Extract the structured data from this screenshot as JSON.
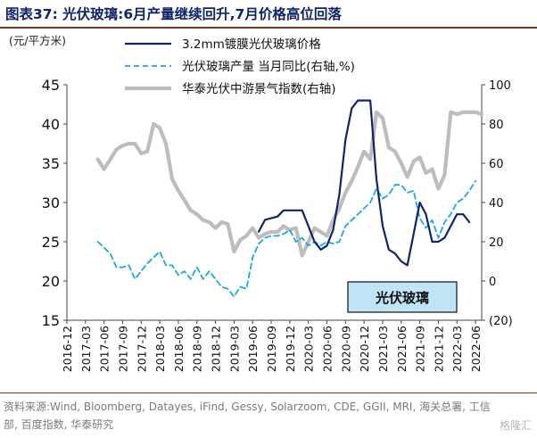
{
  "header": {
    "title": "图表37:  光伏玻璃:6月产量继续回升,7月价格高位回落"
  },
  "footer": {
    "source": "资料来源:Wind, Bloomberg, Datayes, iFind, Gessy, Solarzoom, CDE, GGII, MRI, 海关总署, 工信部, 百度指数, 华泰研究",
    "watermark": "格隆汇"
  },
  "chart_data": {
    "type": "line",
    "unit_label": "(元/平方米)",
    "annotation": "光伏玻璃",
    "colors": {
      "price": "#10246b",
      "production": "#19a9e1",
      "index": "#bdbdbd",
      "annotation_fill": "#bfe4f6"
    },
    "left_axis": {
      "min": 15,
      "max": 45,
      "ticks": [
        15,
        20,
        25,
        30,
        35,
        40,
        45
      ]
    },
    "right_axis": {
      "min": -20,
      "max": 100,
      "ticks": [
        100,
        80,
        60,
        40,
        20,
        0,
        -20
      ],
      "tick_labels": [
        "100",
        "80",
        "60",
        "40",
        "20",
        "0",
        "(20)"
      ]
    },
    "x_labels": [
      "2016-12",
      "2017-03",
      "2017-06",
      "2017-09",
      "2017-12",
      "2018-03",
      "2018-06",
      "2018-09",
      "2018-12",
      "2019-03",
      "2019-06",
      "2019-09",
      "2019-12",
      "2020-03",
      "2020-06",
      "2020-09",
      "2020-12",
      "2021-03",
      "2021-06",
      "2021-09",
      "2021-12",
      "2022-03",
      "2022-06"
    ],
    "x_start": "2016-12",
    "x_end": "2022-07",
    "series": [
      {
        "name": "3.2mm镀膜光伏玻璃价格",
        "axis": "left",
        "style": "solid",
        "points": [
          [
            "2019-07",
            26.3
          ],
          [
            "2019-08",
            27.8
          ],
          [
            "2019-09",
            28.0
          ],
          [
            "2019-10",
            28.2
          ],
          [
            "2019-11",
            29.0
          ],
          [
            "2019-12",
            29.0
          ],
          [
            "2020-01",
            29.0
          ],
          [
            "2020-02",
            29.0
          ],
          [
            "2020-03",
            27.0
          ],
          [
            "2020-04",
            25.0
          ],
          [
            "2020-05",
            24.0
          ],
          [
            "2020-06",
            24.5
          ],
          [
            "2020-07",
            26.5
          ],
          [
            "2020-08",
            31.0
          ],
          [
            "2020-09",
            38.0
          ],
          [
            "2020-10",
            42.0
          ],
          [
            "2020-11",
            43.0
          ],
          [
            "2020-12",
            43.0
          ],
          [
            "2021-01",
            43.0
          ],
          [
            "2021-02",
            33.0
          ],
          [
            "2021-03",
            27.0
          ],
          [
            "2021-04",
            24.0
          ],
          [
            "2021-05",
            23.5
          ],
          [
            "2021-06",
            22.5
          ],
          [
            "2021-07",
            22.0
          ],
          [
            "2021-08",
            26.0
          ],
          [
            "2021-09",
            30.0
          ],
          [
            "2021-10",
            28.5
          ],
          [
            "2021-11",
            25.0
          ],
          [
            "2021-12",
            25.0
          ],
          [
            "2022-01",
            25.5
          ],
          [
            "2022-02",
            27.0
          ],
          [
            "2022-03",
            28.5
          ],
          [
            "2022-04",
            28.5
          ],
          [
            "2022-05",
            27.5
          ]
        ]
      },
      {
        "name": "光伏玻璃产量 当月同比(右轴,%)",
        "axis": "right",
        "style": "dashed",
        "points": [
          [
            "2017-05",
            20
          ],
          [
            "2017-06",
            17
          ],
          [
            "2017-07",
            14
          ],
          [
            "2017-08",
            7
          ],
          [
            "2017-09",
            7
          ],
          [
            "2017-10",
            8
          ],
          [
            "2017-11",
            1
          ],
          [
            "2017-12",
            5
          ],
          [
            "2018-01",
            9
          ],
          [
            "2018-02",
            12
          ],
          [
            "2018-03",
            15
          ],
          [
            "2018-04",
            8
          ],
          [
            "2018-05",
            8
          ],
          [
            "2018-06",
            3
          ],
          [
            "2018-07",
            5
          ],
          [
            "2018-08",
            1
          ],
          [
            "2018-09",
            7
          ],
          [
            "2018-10",
            1
          ],
          [
            "2018-11",
            5
          ],
          [
            "2018-12",
            1
          ],
          [
            "2019-01",
            -3
          ],
          [
            "2019-02",
            -4
          ],
          [
            "2019-03",
            -8
          ],
          [
            "2019-04",
            -3
          ],
          [
            "2019-05",
            -4
          ],
          [
            "2019-06",
            12
          ],
          [
            "2019-07",
            19
          ],
          [
            "2019-08",
            22
          ],
          [
            "2019-09",
            23
          ],
          [
            "2019-10",
            23
          ],
          [
            "2019-11",
            24
          ],
          [
            "2019-12",
            26
          ],
          [
            "2020-01",
            20
          ],
          [
            "2020-02",
            22
          ],
          [
            "2020-03",
            18
          ],
          [
            "2020-04",
            20
          ],
          [
            "2020-05",
            18
          ],
          [
            "2020-06",
            20
          ],
          [
            "2020-07",
            19
          ],
          [
            "2020-08",
            20
          ],
          [
            "2020-09",
            28
          ],
          [
            "2020-10",
            31
          ],
          [
            "2020-11",
            34
          ],
          [
            "2020-12",
            37
          ],
          [
            "2021-01",
            40
          ],
          [
            "2021-02",
            47
          ],
          [
            "2021-03",
            42
          ],
          [
            "2021-04",
            44
          ],
          [
            "2021-05",
            49
          ],
          [
            "2021-06",
            49
          ],
          [
            "2021-07",
            45
          ],
          [
            "2021-08",
            46
          ],
          [
            "2021-09",
            32
          ],
          [
            "2021-10",
            27
          ],
          [
            "2021-11",
            31
          ],
          [
            "2021-12",
            22
          ],
          [
            "2022-01",
            30
          ],
          [
            "2022-02",
            34
          ],
          [
            "2022-03",
            40
          ],
          [
            "2022-04",
            42
          ],
          [
            "2022-05",
            46
          ],
          [
            "2022-06",
            51
          ]
        ]
      },
      {
        "name": "华泰光伏中游景气指数(右轴)",
        "axis": "right",
        "style": "solid-thick",
        "points": [
          [
            "2017-05",
            62
          ],
          [
            "2017-06",
            57
          ],
          [
            "2017-07",
            62
          ],
          [
            "2017-08",
            67
          ],
          [
            "2017-09",
            69
          ],
          [
            "2017-10",
            70
          ],
          [
            "2017-11",
            70
          ],
          [
            "2017-12",
            65
          ],
          [
            "2018-01",
            66
          ],
          [
            "2018-02",
            80
          ],
          [
            "2018-03",
            78
          ],
          [
            "2018-04",
            70
          ],
          [
            "2018-05",
            52
          ],
          [
            "2018-06",
            46
          ],
          [
            "2018-07",
            41
          ],
          [
            "2018-08",
            36
          ],
          [
            "2018-09",
            34
          ],
          [
            "2018-10",
            31
          ],
          [
            "2018-11",
            30
          ],
          [
            "2018-12",
            27
          ],
          [
            "2019-01",
            30
          ],
          [
            "2019-02",
            29
          ],
          [
            "2019-03",
            15
          ],
          [
            "2019-04",
            21
          ],
          [
            "2019-05",
            23
          ],
          [
            "2019-06",
            27
          ],
          [
            "2019-07",
            22
          ],
          [
            "2019-08",
            24
          ],
          [
            "2019-09",
            25
          ],
          [
            "2019-10",
            25
          ],
          [
            "2019-11",
            28
          ],
          [
            "2019-12",
            26
          ],
          [
            "2020-01",
            27
          ],
          [
            "2020-02",
            13
          ],
          [
            "2020-03",
            20
          ],
          [
            "2020-04",
            27
          ],
          [
            "2020-05",
            25
          ],
          [
            "2020-06",
            23
          ],
          [
            "2020-07",
            31
          ],
          [
            "2020-08",
            37
          ],
          [
            "2020-09",
            45
          ],
          [
            "2020-10",
            51
          ],
          [
            "2020-11",
            58
          ],
          [
            "2020-12",
            66
          ],
          [
            "2021-01",
            62
          ],
          [
            "2021-02",
            86
          ],
          [
            "2021-03",
            83
          ],
          [
            "2021-04",
            68
          ],
          [
            "2021-05",
            66
          ],
          [
            "2021-06",
            60
          ],
          [
            "2021-07",
            53
          ],
          [
            "2021-08",
            61
          ],
          [
            "2021-09",
            63
          ],
          [
            "2021-10",
            55
          ],
          [
            "2021-11",
            57
          ],
          [
            "2021-12",
            47
          ],
          [
            "2022-01",
            54
          ],
          [
            "2022-02",
            86
          ],
          [
            "2022-03",
            85
          ],
          [
            "2022-04",
            86
          ],
          [
            "2022-05",
            86
          ],
          [
            "2022-06",
            86
          ],
          [
            "2022-07",
            85
          ]
        ]
      }
    ],
    "legend_position": "top-center",
    "grid": false
  }
}
